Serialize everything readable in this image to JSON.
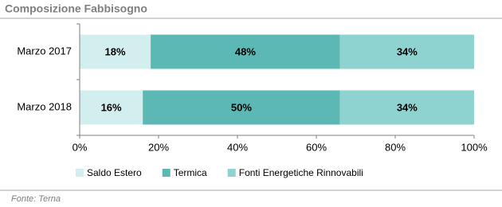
{
  "chart_data": {
    "type": "stacked_barh",
    "title": "Composizione Fabbisogno",
    "source": "Fonte: Terna",
    "categories": [
      "Marzo 2017",
      "Marzo 2018"
    ],
    "series": [
      {
        "name": "Saldo Estero",
        "color": "#d3eeee",
        "values": [
          18,
          16
        ],
        "value_labels": [
          "18%",
          "16%"
        ]
      },
      {
        "name": "Termica",
        "color": "#5bb8b4",
        "values": [
          48,
          50
        ],
        "value_labels": [
          "48%",
          "50%"
        ]
      },
      {
        "name": "Fonti Energetiche Rinnovabili",
        "color": "#8ed3d0",
        "values": [
          34,
          34
        ],
        "value_labels": [
          "34%",
          "34%"
        ]
      }
    ],
    "xlim": [
      0,
      100
    ],
    "xticks": [
      {
        "value": 0,
        "label": "0%"
      },
      {
        "value": 20,
        "label": "20%"
      },
      {
        "value": 40,
        "label": "40%"
      },
      {
        "value": 60,
        "label": "60%"
      },
      {
        "value": 80,
        "label": "80%"
      },
      {
        "value": 100,
        "label": "100%"
      }
    ],
    "grid": false
  }
}
